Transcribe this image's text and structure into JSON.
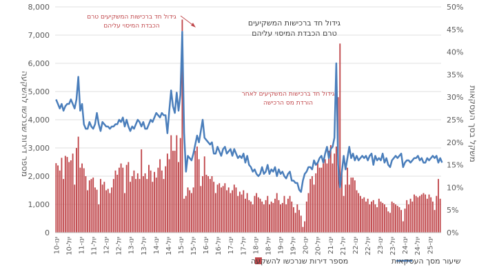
{
  "chart_data": {
    "type": "bar",
    "colors": {
      "bars": "#c0474b",
      "line": "#4a7ebb",
      "axis_text": "#595959",
      "gridline": "#bfbfbf",
      "annotation": "#c0474b"
    },
    "left_axis": {
      "label": "מספר דירות שנרכשו להשקעה",
      "ylim": [
        0,
        8000
      ],
      "tick_labels": [
        "0",
        "1,000",
        "2,000",
        "3,000",
        "4,000",
        "5,000",
        "6,000",
        "7,000",
        "8,000"
      ]
    },
    "right_axis": {
      "label": "משקל בסך העסקאות",
      "ylim": [
        0,
        50
      ],
      "tick_labels": [
        "0%",
        "5%",
        "10%",
        "15%",
        "20%",
        "25%",
        "30%",
        "35%",
        "40%",
        "45%",
        "50%"
      ]
    },
    "x_tick_labels": [
      "ינו-10",
      "יול-10",
      "ינו-11",
      "יול-11",
      "ינו-12",
      "יול-12",
      "ינו-13",
      "יול-13",
      "ינו-14",
      "יול-14",
      "ינו-15",
      "יול-15",
      "ינו-16",
      "יול-16",
      "ינו-17",
      "יול-17",
      "ינו-18",
      "יול-18",
      "ינו-19",
      "יול-19",
      "ינו-20",
      "יול-20",
      "ינו-21",
      "יול-21",
      "ינו-22",
      "יול-22",
      "ינו-23",
      "יול-23",
      "ינו-24",
      "יול-24",
      "ינו-25"
    ],
    "legend": {
      "line_label": "שיעור מסך העסקאות",
      "bar_label": "מספר דירות שנרכשו להשקעה"
    },
    "annotations": [
      {
        "lines": [
          "גידול חד ברכישות המשקיעים טרם",
          "הכבדת המיסוי עליהם"
        ]
      },
      {
        "lines": [
          "גידול חד ברכישות המשקיעים",
          "טרם הכבדת המיסוי עליהם"
        ]
      },
      {
        "lines": [
          "גידול חד ברכישות המשקיעים לאחר",
          "הורדת מס הרכישה"
        ]
      }
    ],
    "series": [
      {
        "name": "מספר דירות שנרכשו להשקעה",
        "axis": "left",
        "values": [
          2460,
          2380,
          2200,
          2650,
          1900,
          2720,
          2680,
          2500,
          2560,
          2800,
          1700,
          3000,
          3400,
          2300,
          2450,
          2280,
          2000,
          1500,
          1850,
          1900,
          1950,
          1600,
          1520,
          1000,
          1900,
          1700,
          1800,
          1500,
          1550,
          1400,
          1600,
          1900,
          2200,
          2050,
          2300,
          2450,
          2300,
          1400,
          2400,
          2500,
          1800,
          2000,
          2200,
          1900,
          2100,
          1900,
          2950,
          2000,
          2100,
          1900,
          2400,
          2200,
          1800,
          2150,
          1950,
          2300,
          2600,
          2200,
          1900,
          2350,
          2800,
          2600,
          3450,
          2900,
          2900,
          3450,
          2500,
          3350,
          7550,
          1200,
          1300,
          1600,
          1500,
          1400,
          1600,
          2900,
          3050,
          2600,
          1650,
          2000,
          2700,
          2050,
          2000,
          1900,
          2000,
          1800,
          1400,
          1700,
          1750,
          1600,
          1650,
          1750,
          1500,
          1600,
          1400,
          1500,
          1700,
          1600,
          1300,
          1450,
          1350,
          1500,
          1200,
          1400,
          1150,
          1100,
          1000,
          1300,
          1400,
          1250,
          1200,
          1100,
          1000,
          1150,
          1300,
          1000,
          1100,
          1050,
          1200,
          1400,
          1150,
          1000,
          1050,
          1300,
          1000,
          1200,
          1300,
          1100,
          900,
          700,
          1000,
          800,
          600,
          200,
          400,
          1100,
          1400,
          1900,
          2000,
          1700,
          2100,
          2500,
          2300,
          2300,
          2450,
          2600,
          2450,
          2900,
          3100,
          2450,
          2800,
          3050,
          4800,
          6700,
          2150,
          1300,
          1700,
          2300,
          1700,
          1950,
          1950,
          1850,
          1500,
          1400,
          1300,
          1200,
          1250,
          1100,
          1200,
          1000,
          1100,
          1150,
          1000,
          900,
          1200,
          1100,
          1050,
          1000,
          900,
          750,
          700,
          1100,
          1050,
          1000,
          950,
          900,
          800,
          400,
          850,
          1150,
          1000,
          1200,
          1100,
          1350,
          1300,
          1250,
          1300,
          1350,
          1400,
          1350,
          1200,
          1350,
          1250,
          1100,
          800,
          1300,
          1900,
          1200
        ]
      },
      {
        "name": "שיעור מסך העסקאות",
        "axis": "right",
        "values": [
          29.5,
          28.5,
          27.5,
          28.5,
          27.0,
          28.0,
          28.5,
          28.5,
          29.5,
          28.5,
          27.5,
          29.5,
          34.5,
          27.0,
          28.5,
          24.0,
          23.0,
          23.0,
          24.5,
          23.5,
          23.0,
          24.0,
          26.5,
          24.0,
          22.5,
          24.5,
          24.0,
          23.5,
          23.5,
          23.0,
          23.5,
          23.5,
          24.0,
          24.0,
          25.0,
          24.5,
          25.5,
          23.5,
          25.0,
          23.5,
          22.5,
          23.5,
          23.0,
          24.0,
          25.0,
          24.5,
          23.5,
          24.5,
          23.0,
          23.0,
          24.0,
          25.0,
          24.5,
          25.5,
          26.5,
          26.0,
          25.5,
          26.5,
          26.0,
          26.0,
          22.0,
          27.0,
          31.5,
          28.0,
          26.5,
          31.0,
          27.0,
          30.5,
          44.5,
          22.0,
          13.5,
          17.0,
          16.5,
          16.0,
          17.5,
          19.5,
          21.5,
          20.0,
          22.5,
          25.0,
          21.0,
          20.5,
          20.0,
          19.5,
          20.0,
          17.5,
          17.5,
          19.0,
          18.0,
          17.0,
          18.5,
          19.0,
          17.5,
          18.0,
          18.5,
          17.0,
          18.5,
          17.5,
          16.5,
          17.0,
          16.5,
          17.5,
          15.5,
          17.0,
          15.0,
          14.5,
          13.5,
          14.0,
          13.0,
          12.5,
          13.0,
          14.5,
          13.0,
          13.5,
          15.0,
          13.0,
          14.0,
          13.5,
          14.5,
          12.5,
          14.0,
          13.0,
          13.5,
          12.5,
          12.0,
          13.0,
          13.5,
          11.5,
          11.5,
          11.0,
          11.0,
          9.5,
          9.0,
          11.5,
          13.0,
          13.5,
          14.5,
          14.5,
          14.0,
          16.0,
          15.0,
          15.5,
          16.5,
          17.0,
          15.5,
          17.5,
          19.0,
          16.5,
          18.5,
          19.0,
          21.0,
          37.5,
          15.0,
          10.0,
          13.5,
          17.0,
          14.0,
          16.5,
          19.0,
          16.5,
          17.5,
          16.0,
          17.0,
          16.0,
          16.5,
          17.0,
          16.5,
          17.0,
          16.0,
          17.0,
          17.5,
          15.0,
          17.0,
          16.0,
          16.5,
          16.0,
          17.5,
          15.5,
          16.5,
          15.0,
          14.5,
          16.0,
          16.5,
          17.0,
          16.5,
          17.0,
          17.5,
          14.5,
          15.5,
          16.0,
          16.0,
          15.5,
          16.0,
          16.5,
          16.5,
          17.0,
          16.0,
          16.5,
          15.5,
          15.5,
          16.5,
          16.0,
          16.5,
          17.0,
          16.5,
          17.0,
          15.5,
          16.5,
          15.5
        ]
      }
    ]
  }
}
